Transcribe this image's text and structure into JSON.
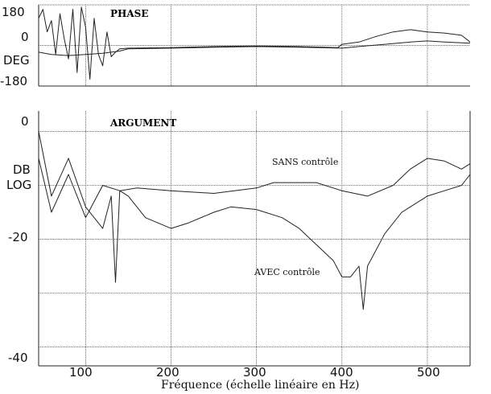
{
  "chart_data": [
    {
      "type": "line",
      "title": "PHASE",
      "ylabel": "DEG",
      "xlim": [
        45,
        550
      ],
      "ylim": [
        -180,
        180
      ],
      "yticks": [
        "180",
        "0",
        "-180"
      ],
      "grid": true,
      "series": [
        {
          "x": [
            45,
            50,
            55,
            60,
            65,
            70,
            75,
            80,
            85,
            90,
            95,
            100,
            105,
            110,
            115,
            120,
            125,
            130,
            135,
            140,
            150,
            200,
            250,
            300,
            350,
            395,
            400,
            420,
            440,
            460,
            480,
            500,
            520,
            540,
            550
          ],
          "y": [
            120,
            160,
            60,
            110,
            -40,
            140,
            30,
            -60,
            160,
            -120,
            170,
            80,
            -150,
            120,
            -40,
            -90,
            60,
            -50,
            -30,
            -15,
            -12,
            -10,
            -5,
            -3,
            -5,
            -10,
            5,
            15,
            40,
            60,
            70,
            60,
            55,
            45,
            15
          ]
        },
        {
          "x": [
            45,
            60,
            80,
            100,
            120,
            140,
            150,
            200,
            250,
            300,
            350,
            400,
            420,
            450,
            480,
            500,
            520,
            550
          ],
          "y": [
            -30,
            -40,
            -45,
            -40,
            -35,
            -25,
            -15,
            -12,
            -8,
            -5,
            -8,
            -12,
            -5,
            5,
            15,
            20,
            15,
            10
          ]
        }
      ]
    },
    {
      "type": "line",
      "title": "ARGUMENT",
      "ylabel": "DB LOG",
      "xlabel": "Fréquence (échelle linéaire en Hz)",
      "xlim": [
        45,
        550
      ],
      "ylim": [
        -42,
        2
      ],
      "yticks": [
        "0",
        "-20",
        "-40"
      ],
      "xticks": [
        "100",
        "200",
        "300",
        "400",
        "500"
      ],
      "grid": true,
      "annotations": [
        "SANS contrôle",
        "AVEC contrôle"
      ],
      "series": [
        {
          "name": "SANS contrôle",
          "x": [
            45,
            60,
            80,
            100,
            120,
            140,
            160,
            200,
            250,
            300,
            320,
            350,
            370,
            400,
            430,
            460,
            480,
            500,
            520,
            540,
            550
          ],
          "y": [
            -5,
            -15,
            -8,
            -16,
            -10,
            -11,
            -10.5,
            -11,
            -11.5,
            -10.5,
            -9.5,
            -9.5,
            -9.5,
            -11,
            -12,
            -10,
            -7,
            -5,
            -5.5,
            -7,
            -6
          ]
        },
        {
          "name": "AVEC contrôle",
          "x": [
            45,
            60,
            80,
            100,
            120,
            130,
            135,
            140,
            150,
            170,
            200,
            220,
            250,
            270,
            300,
            330,
            350,
            370,
            390,
            400,
            410,
            420,
            425,
            430,
            450,
            470,
            500,
            520,
            540,
            550
          ],
          "y": [
            0,
            -12,
            -5,
            -14,
            -18,
            -12,
            -28,
            -11,
            -12,
            -16,
            -18,
            -17,
            -15,
            -14,
            -14.5,
            -16,
            -18,
            -21,
            -24,
            -27,
            -27,
            -25,
            -33,
            -25,
            -19,
            -15,
            -12,
            -11,
            -10,
            -8
          ]
        }
      ]
    }
  ]
}
